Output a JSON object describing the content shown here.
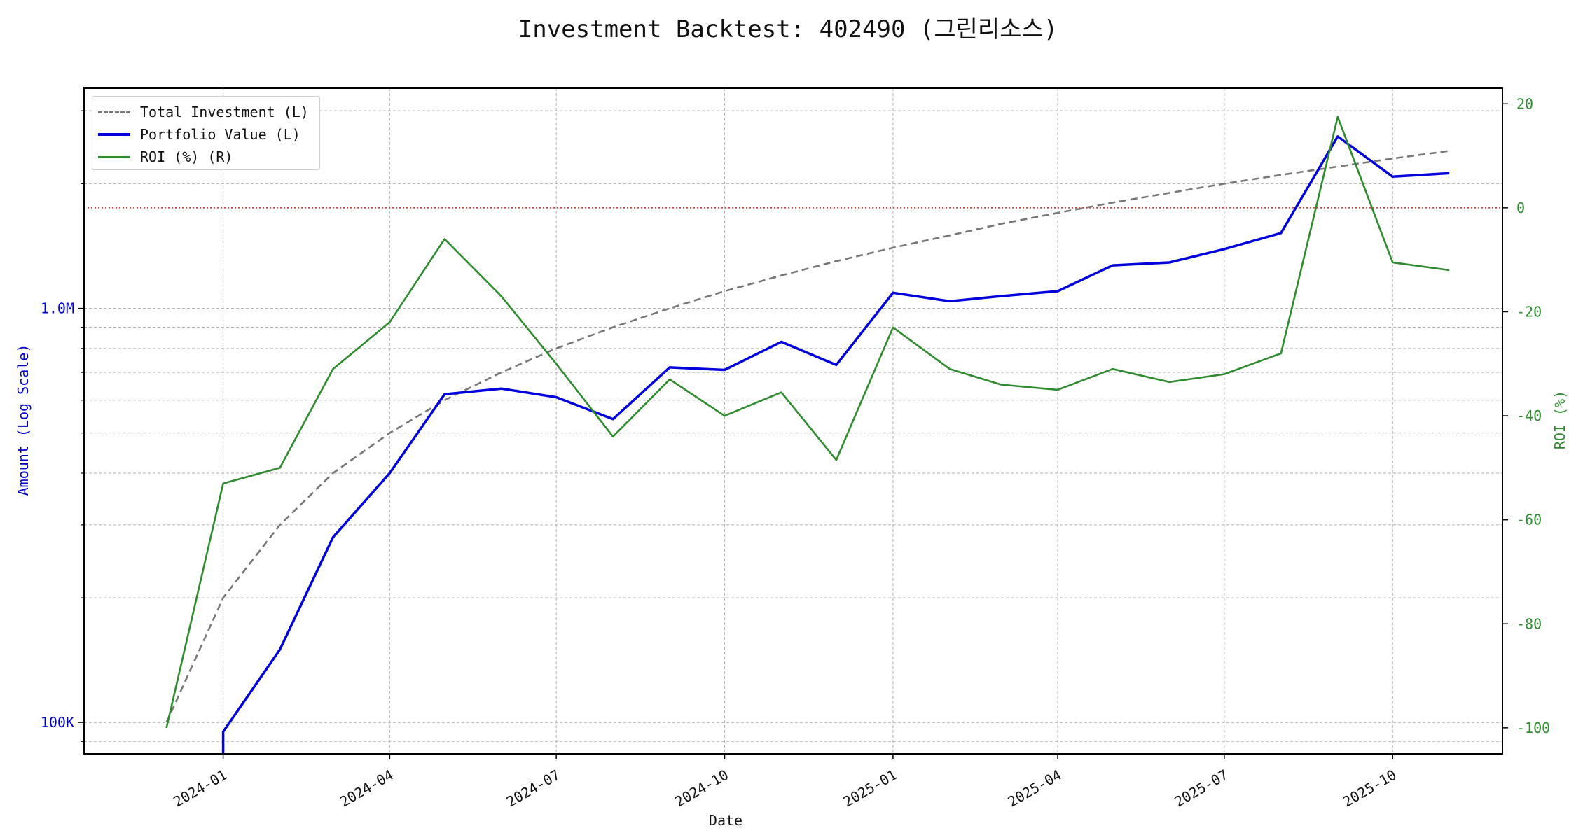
{
  "chart_data": {
    "type": "line",
    "title": "Investment Backtest: 402490 (그린리소스)",
    "xlabel": "Date",
    "ylabel_left": "Amount (Log Scale)",
    "ylabel_right": "ROI (%)",
    "x_axis": {
      "range": [
        "2023-10-17",
        "2025-11-30"
      ],
      "ticks": [
        "2024-01",
        "2024-04",
        "2024-07",
        "2024-10",
        "2025-01",
        "2025-04",
        "2025-07",
        "2025-10"
      ]
    },
    "y_left": {
      "scale": "log",
      "range": [
        84000,
        3400000
      ],
      "tick_labels": [
        "100K",
        "1.0M"
      ],
      "tick_values": [
        100000,
        1000000
      ]
    },
    "y_right": {
      "range": [
        -105,
        23
      ],
      "ticks": [
        20,
        0,
        -20,
        -40,
        -60,
        -80,
        -100
      ]
    },
    "grid": true,
    "legend_position": "upper left",
    "reference_line": {
      "axis": "right",
      "value": 0,
      "color": "#d62728"
    },
    "x": [
      "2023-12-01",
      "2024-01-01",
      "2024-02-01",
      "2024-03-01",
      "2024-04-01",
      "2024-05-01",
      "2024-06-01",
      "2024-07-01",
      "2024-08-01",
      "2024-09-01",
      "2024-10-01",
      "2024-11-01",
      "2024-12-01",
      "2025-01-01",
      "2025-02-01",
      "2025-03-01",
      "2025-04-01",
      "2025-05-01",
      "2025-06-01",
      "2025-07-01",
      "2025-08-01",
      "2025-09-01",
      "2025-10-01",
      "2025-11-01"
    ],
    "series": [
      {
        "name": "Total Investment (L)",
        "axis": "left",
        "style": "dashed",
        "color": "#777777",
        "values": [
          100000,
          200000,
          300000,
          400000,
          500000,
          600000,
          700000,
          800000,
          900000,
          1000000,
          1100000,
          1200000,
          1300000,
          1400000,
          1500000,
          1600000,
          1700000,
          1800000,
          1900000,
          2000000,
          2100000,
          2200000,
          2300000,
          2400000
        ]
      },
      {
        "name": "Portfolio Value (L)",
        "axis": "left",
        "style": "solid",
        "color": "#0000dd",
        "values": [
          null,
          95000,
          150000,
          280000,
          400000,
          620000,
          640000,
          610000,
          540000,
          720000,
          710000,
          830000,
          730000,
          1090000,
          1040000,
          1070000,
          1100000,
          1270000,
          1290000,
          1390000,
          1520000,
          2600000,
          2080000,
          2120000
        ]
      },
      {
        "name": "ROI (%) (R)",
        "axis": "right",
        "style": "solid",
        "color": "#2e8b2e",
        "values": [
          -100,
          -53,
          -50,
          -31,
          -22,
          -6,
          -17,
          -30,
          -44,
          -33,
          -40,
          -35.5,
          -48.5,
          -23,
          -31,
          -34,
          -35,
          -31,
          -33.5,
          -32,
          -28,
          17.5,
          -10.5,
          -12
        ]
      }
    ]
  }
}
